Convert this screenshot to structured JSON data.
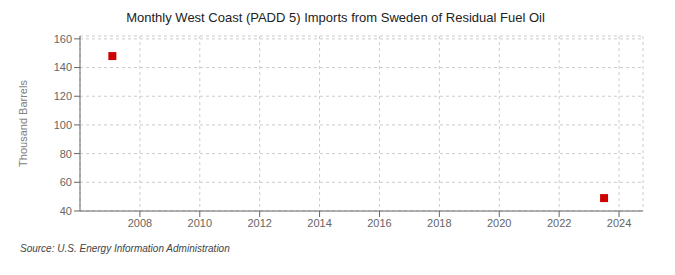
{
  "chart_data": {
    "type": "scatter",
    "title": "Monthly West Coast (PADD 5) Imports from Sweden of Residual Fuel Oil",
    "ylabel": "Thousand Barrels",
    "annotations": [
      "Source: U.S. Energy Information Administration"
    ],
    "x": [
      2007.08,
      2023.5
    ],
    "values": [
      148,
      49
    ],
    "color": "#cc0000",
    "marker": "square",
    "xlim": [
      2006.0,
      2024.8
    ],
    "ylim": [
      40,
      162
    ],
    "xticks": [
      2008,
      2010,
      2012,
      2014,
      2016,
      2018,
      2020,
      2022,
      2024
    ],
    "yticks": [
      40,
      60,
      80,
      100,
      120,
      140,
      160
    ],
    "grid": true
  }
}
